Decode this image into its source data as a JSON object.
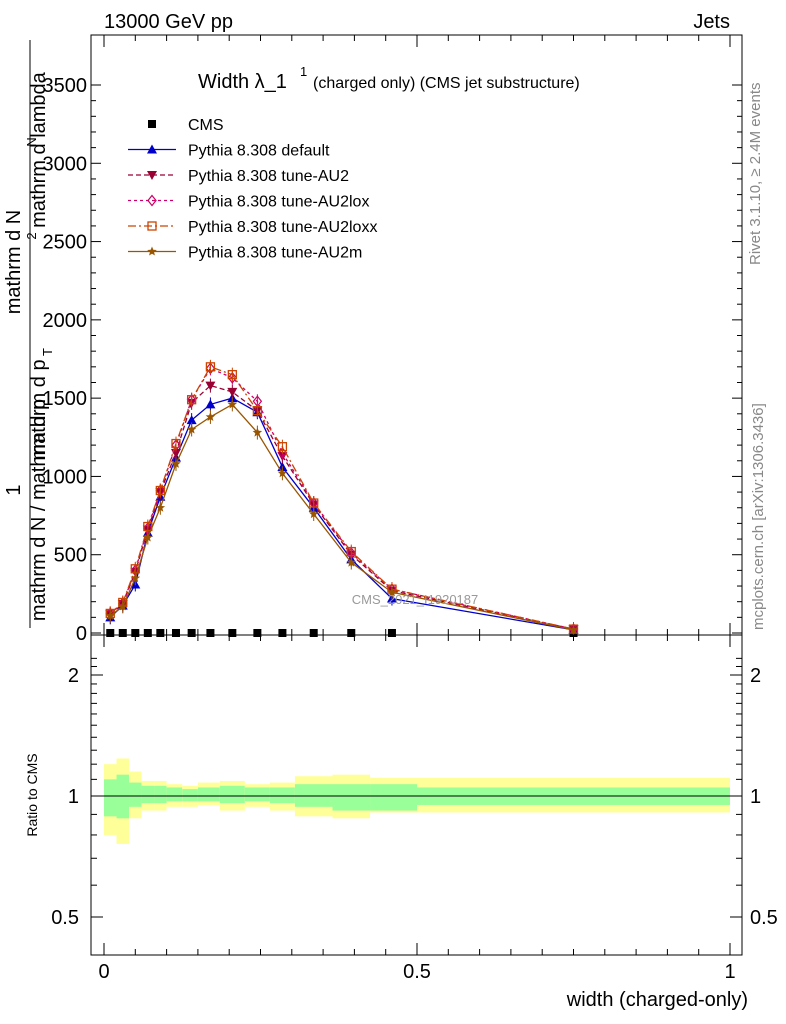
{
  "header": {
    "left": "13000 GeV pp",
    "right": "Jets"
  },
  "side": {
    "rivet": "Rivet 3.1.10, ≥ 2.4M events",
    "mcplots": "mcplots.cern.ch [arXiv:1306.3436]"
  },
  "chart_data": [
    {
      "type": "line",
      "title": "Width λ_1",
      "title_sup": "1",
      "subtitle": "(charged only) (CMS jet substructure)",
      "ylabel_top": "mathrm d",
      "ylabel_lines": [
        "mathrm d",
        "mathrm d N",
        "mathrm d p",
        "mathrm d lambda",
        "mathrm d N / mathrm d p",
        "1"
      ],
      "ylabel_n": "N",
      "ylabel_T": "T",
      "ylabel_2": "2",
      "watermark": "CMS_2021_I1920187",
      "xlim": [
        0,
        1.0
      ],
      "ylim": [
        0,
        3800
      ],
      "yticks": [
        0,
        500,
        1000,
        1500,
        2000,
        2500,
        3000,
        3500
      ],
      "ytick_labels": [
        "0",
        "500",
        "1000",
        "1500",
        "2000",
        "2500",
        "3000",
        "3500"
      ],
      "legend_position": "top-left",
      "x": [
        0.01,
        0.03,
        0.05,
        0.07,
        0.09,
        0.115,
        0.14,
        0.17,
        0.205,
        0.245,
        0.285,
        0.335,
        0.395,
        0.46,
        0.75
      ],
      "series": [
        {
          "name": "CMS",
          "color": "#000000",
          "marker": "square",
          "dash": "none",
          "values": [
            0,
            0,
            0,
            0,
            0,
            0,
            0,
            0,
            0,
            0,
            0,
            0,
            0,
            0,
            0
          ]
        },
        {
          "name": "Pythia 8.308 default",
          "color": "#0000cc",
          "marker": "triangle-up",
          "dash": "none",
          "values": [
            100,
            175,
            310,
            640,
            870,
            1120,
            1360,
            1460,
            1500,
            1410,
            1060,
            800,
            470,
            220,
            20
          ]
        },
        {
          "name": "Pythia 8.308 tune-AU2",
          "color": "#990033",
          "marker": "triangle-down",
          "dash": "5,3",
          "values": [
            120,
            185,
            390,
            660,
            900,
            1150,
            1470,
            1580,
            1540,
            1420,
            1130,
            820,
            500,
            270,
            25
          ]
        },
        {
          "name": "Pythia 8.308 tune-AU2lox",
          "color": "#cc0066",
          "marker": "diamond",
          "dash": "3,3",
          "values": [
            125,
            190,
            400,
            670,
            910,
            1200,
            1490,
            1690,
            1630,
            1480,
            1150,
            830,
            510,
            280,
            25
          ]
        },
        {
          "name": "Pythia 8.308 tune-AU2loxx",
          "color": "#cc4400",
          "marker": "square-open",
          "dash": "8,3,2,3",
          "values": [
            125,
            195,
            410,
            680,
            910,
            1210,
            1490,
            1700,
            1650,
            1420,
            1190,
            830,
            520,
            280,
            25
          ]
        },
        {
          "name": "Pythia 8.308 tune-AU2m",
          "color": "#995500",
          "marker": "star",
          "dash": "none",
          "values": [
            110,
            170,
            350,
            610,
            800,
            1080,
            1300,
            1380,
            1460,
            1280,
            1020,
            760,
            450,
            260,
            20
          ]
        }
      ]
    },
    {
      "type": "area",
      "ylabel": "Ratio to CMS",
      "xlabel": "width (charged-only)",
      "xlim": [
        0,
        1.0
      ],
      "ylim": [
        0.3,
        2.3
      ],
      "yticks": [
        0.5,
        1,
        2
      ],
      "ytick_labels": [
        "0.5",
        "1",
        "2"
      ],
      "xticks": [
        0,
        0.5,
        1
      ],
      "xtick_labels": [
        "0",
        "0.5",
        "1"
      ],
      "bin_edges": [
        0,
        0.02,
        0.04,
        0.06,
        0.08,
        0.1,
        0.125,
        0.15,
        0.185,
        0.225,
        0.265,
        0.305,
        0.365,
        0.425,
        0.5,
        1.0
      ],
      "stat_band": [
        [
          0.89,
          1.1
        ],
        [
          0.88,
          1.13
        ],
        [
          0.94,
          1.08
        ],
        [
          0.96,
          1.06
        ],
        [
          0.96,
          1.06
        ],
        [
          0.97,
          1.05
        ],
        [
          0.97,
          1.04
        ],
        [
          0.97,
          1.05
        ],
        [
          0.96,
          1.06
        ],
        [
          0.97,
          1.05
        ],
        [
          0.96,
          1.05
        ],
        [
          0.94,
          1.07
        ],
        [
          0.92,
          1.07
        ],
        [
          0.92,
          1.07
        ],
        [
          0.95,
          1.05
        ]
      ],
      "syst_band": [
        [
          0.8,
          1.2
        ],
        [
          0.76,
          1.24
        ],
        [
          0.88,
          1.15
        ],
        [
          0.92,
          1.09
        ],
        [
          0.92,
          1.09
        ],
        [
          0.94,
          1.07
        ],
        [
          0.94,
          1.06
        ],
        [
          0.95,
          1.08
        ],
        [
          0.92,
          1.09
        ],
        [
          0.94,
          1.07
        ],
        [
          0.92,
          1.08
        ],
        [
          0.89,
          1.12
        ],
        [
          0.88,
          1.13
        ],
        [
          0.91,
          1.11
        ],
        [
          0.91,
          1.11
        ]
      ],
      "band_colors": {
        "stat": "#99ff99",
        "syst": "#ffff99"
      }
    }
  ]
}
